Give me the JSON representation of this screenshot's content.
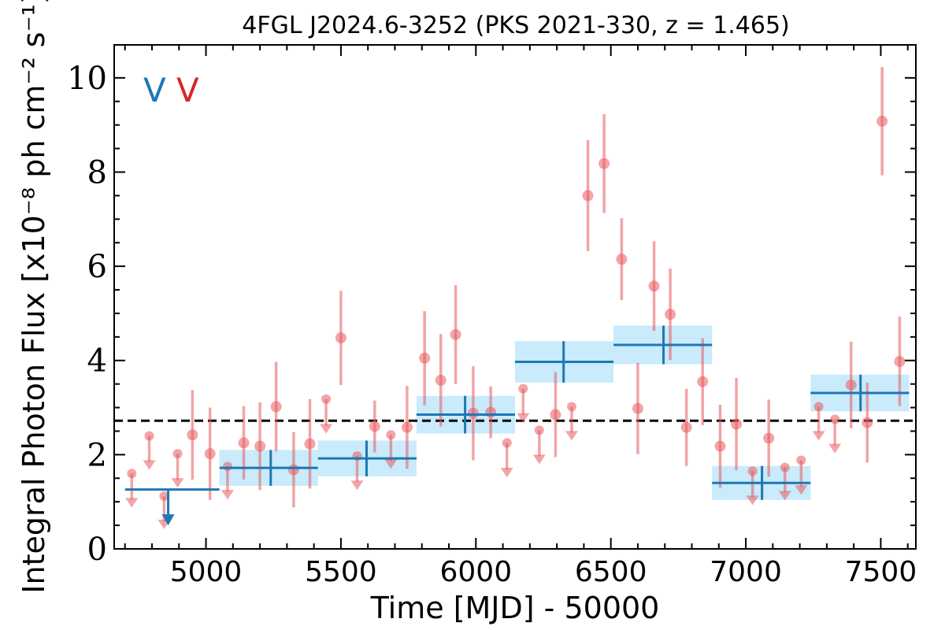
{
  "chart_data": {
    "type": "scatter",
    "title": "4FGL J2024.6-3252 (PKS 2021-330, z = 1.465)",
    "xlabel": "Time [MJD] - 50000",
    "ylabel": "Integral Photon Flux [x10⁻⁸ ph cm⁻² s⁻¹]",
    "xlim": [
      4660,
      7630
    ],
    "ylim": [
      0,
      10.7
    ],
    "xticks": [
      5000,
      5500,
      6000,
      6500,
      7000,
      7500
    ],
    "yticks": [
      0,
      2,
      4,
      6,
      8,
      10
    ],
    "xtick_labels": [
      "5000",
      "5500",
      "6000",
      "6500",
      "7000",
      "7500"
    ],
    "ytick_labels": [
      "0",
      "2",
      "4",
      "6",
      "8",
      "10"
    ],
    "reference_line": {
      "y": 2.72,
      "style": "dashed",
      "color": "#000000"
    },
    "legend": {
      "placement": "top-left",
      "entries": [
        {
          "label": "V",
          "color": "#1f77b4"
        },
        {
          "label": "V",
          "color": "#d62728"
        }
      ]
    },
    "series": [
      {
        "role": "detections",
        "color": "#e8595d",
        "points": [
          {
            "x": 4950,
            "y": 2.42,
            "err": 0.95
          },
          {
            "x": 5015,
            "y": 2.02,
            "err": 0.98
          },
          {
            "x": 5140,
            "y": 2.25,
            "err": 0.78
          },
          {
            "x": 5200,
            "y": 2.18,
            "err": 0.93
          },
          {
            "x": 5260,
            "y": 3.02,
            "err": 0.95
          },
          {
            "x": 5325,
            "y": 1.68,
            "err": 0.8
          },
          {
            "x": 5385,
            "y": 2.23,
            "err": 0.95
          },
          {
            "x": 5500,
            "y": 4.48,
            "err": 1.0
          },
          {
            "x": 5625,
            "y": 2.6,
            "err": 0.55
          },
          {
            "x": 5745,
            "y": 2.58,
            "err": 0.88
          },
          {
            "x": 5810,
            "y": 4.05,
            "err": 1.0
          },
          {
            "x": 5870,
            "y": 3.58,
            "err": 0.98
          },
          {
            "x": 5925,
            "y": 4.55,
            "err": 1.05
          },
          {
            "x": 5990,
            "y": 2.88,
            "err": 1.0
          },
          {
            "x": 6055,
            "y": 2.9,
            "err": 0.55
          },
          {
            "x": 6295,
            "y": 2.85,
            "err": 0.9
          },
          {
            "x": 6415,
            "y": 7.5,
            "err": 1.18
          },
          {
            "x": 6475,
            "y": 8.18,
            "err": 1.05
          },
          {
            "x": 6540,
            "y": 6.15,
            "err": 0.87
          },
          {
            "x": 6600,
            "y": 2.98,
            "err": 0.97
          },
          {
            "x": 6660,
            "y": 5.58,
            "err": 0.95
          },
          {
            "x": 6720,
            "y": 4.98,
            "err": 0.97
          },
          {
            "x": 6780,
            "y": 2.58,
            "err": 0.82
          },
          {
            "x": 6840,
            "y": 3.55,
            "err": 0.92
          },
          {
            "x": 6905,
            "y": 2.18,
            "err": 0.88
          },
          {
            "x": 6965,
            "y": 2.65,
            "err": 0.98
          },
          {
            "x": 7085,
            "y": 2.35,
            "err": 0.82
          },
          {
            "x": 7390,
            "y": 3.48,
            "err": 0.92
          },
          {
            "x": 7450,
            "y": 2.68,
            "err": 0.85
          },
          {
            "x": 7505,
            "y": 9.08,
            "err": 1.15
          },
          {
            "x": 7570,
            "y": 3.98,
            "err": 0.95
          }
        ]
      },
      {
        "role": "upper_limits",
        "color": "#e8595d",
        "points": [
          {
            "x": 4725,
            "y": 1.6,
            "y_arrow_tip": 0.88
          },
          {
            "x": 4790,
            "y": 2.4,
            "y_arrow_tip": 1.68
          },
          {
            "x": 4845,
            "y": 1.12,
            "y_arrow_tip": 0.42
          },
          {
            "x": 4895,
            "y": 2.02,
            "y_arrow_tip": 1.3
          },
          {
            "x": 5080,
            "y": 1.75,
            "y_arrow_tip": 1.05
          },
          {
            "x": 5445,
            "y": 3.18,
            "y_arrow_tip": 2.45
          },
          {
            "x": 5560,
            "y": 1.97,
            "y_arrow_tip": 1.25
          },
          {
            "x": 5685,
            "y": 2.42,
            "y_arrow_tip": 1.7
          },
          {
            "x": 6115,
            "y": 2.25,
            "y_arrow_tip": 1.52
          },
          {
            "x": 6175,
            "y": 3.4,
            "y_arrow_tip": 2.68
          },
          {
            "x": 6235,
            "y": 2.52,
            "y_arrow_tip": 1.8
          },
          {
            "x": 6355,
            "y": 3.02,
            "y_arrow_tip": 2.3
          },
          {
            "x": 7025,
            "y": 1.65,
            "y_arrow_tip": 0.93
          },
          {
            "x": 7145,
            "y": 1.73,
            "y_arrow_tip": 1.03
          },
          {
            "x": 7205,
            "y": 1.88,
            "y_arrow_tip": 1.15
          },
          {
            "x": 7270,
            "y": 3.02,
            "y_arrow_tip": 2.3
          },
          {
            "x": 7330,
            "y": 2.75,
            "y_arrow_tip": 2.03
          }
        ]
      },
      {
        "role": "binned",
        "color": "#1f77b4",
        "fill_color": "#c9ebfb",
        "bins": [
          {
            "x0": 4700,
            "x1": 5050,
            "y": 1.26,
            "upper_limit": true,
            "arrow_x": 4860,
            "y_arrow_tip": 0.5
          },
          {
            "x0": 5050,
            "x1": 5415,
            "y": 1.72,
            "err": 0.38,
            "center": 5240
          },
          {
            "x0": 5415,
            "x1": 5780,
            "y": 1.92,
            "err": 0.38,
            "center": 5595
          },
          {
            "x0": 5780,
            "x1": 6145,
            "y": 2.85,
            "err": 0.4,
            "center": 5960
          },
          {
            "x0": 6145,
            "x1": 6510,
            "y": 3.97,
            "err": 0.44,
            "center": 6325
          },
          {
            "x0": 6510,
            "x1": 6875,
            "y": 4.33,
            "err": 0.41,
            "center": 6695
          },
          {
            "x0": 6875,
            "x1": 7240,
            "y": 1.4,
            "err": 0.36,
            "center": 7060
          },
          {
            "x0": 7240,
            "x1": 7605,
            "y": 3.31,
            "err": 0.39,
            "center": 7425
          }
        ]
      }
    ]
  }
}
